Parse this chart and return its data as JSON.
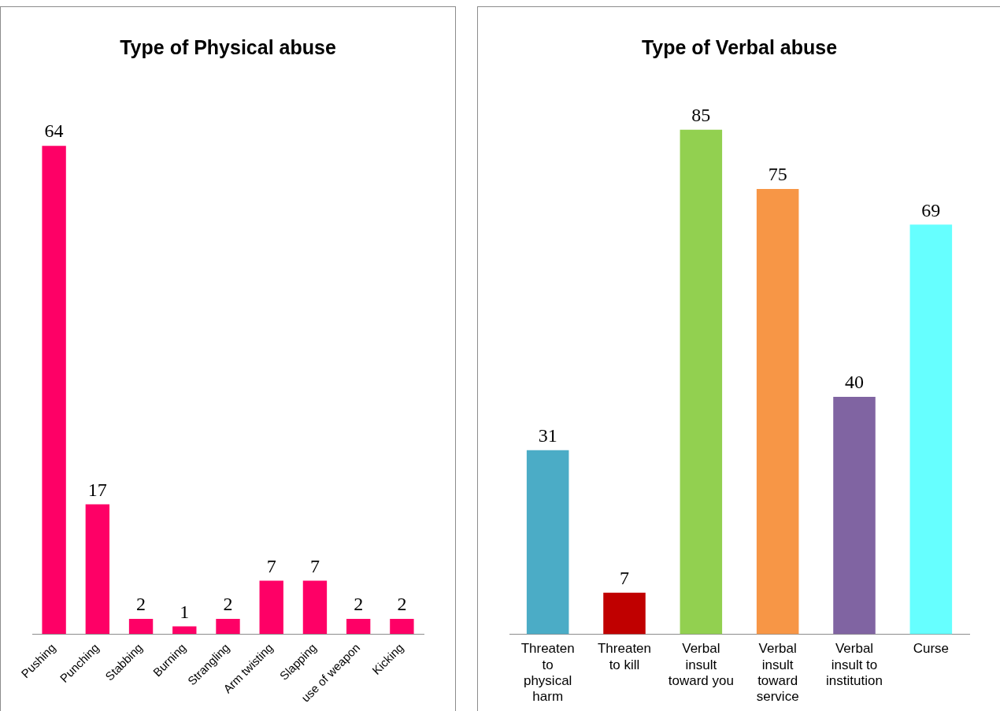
{
  "chart_data": [
    {
      "type": "bar",
      "title": "Type of Physical abuse",
      "categories": [
        "Pushing",
        "Punching",
        "Stabbing",
        "Burning",
        "Strangling",
        "Arm twisting",
        "Slapping",
        "use of weapon",
        "Kicking"
      ],
      "values": [
        64,
        17,
        2,
        1,
        2,
        7,
        7,
        2,
        2
      ],
      "color": "#fe0066",
      "data_labels": true
    },
    {
      "type": "bar",
      "title": "Type of Verbal abuse",
      "categories": [
        "Threaten to physical harm",
        "Threaten to kill",
        "Verbal insult toward you",
        "Verbal insult toward service",
        "Verbal insult to institution",
        "Curse"
      ],
      "values": [
        31,
        7,
        85,
        75,
        40,
        69
      ],
      "colors": [
        "#4bacc6",
        "#c00000",
        "#92d050",
        "#f79646",
        "#8064a2",
        "#66ffff"
      ],
      "data_labels": true
    }
  ]
}
